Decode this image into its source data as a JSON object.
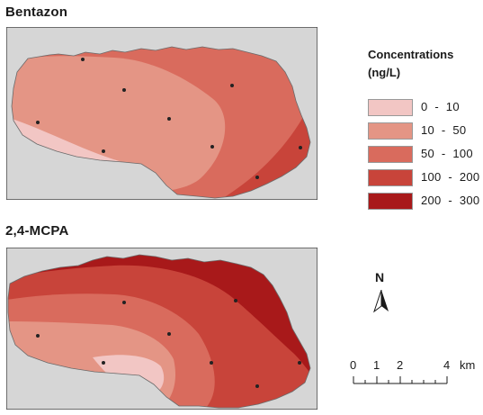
{
  "panels": [
    {
      "title": "Bentazon",
      "stations": [
        "",
        ""
      ]
    },
    {
      "title": "2,4-MCPA",
      "stations": [
        "",
        ""
      ]
    }
  ],
  "legend": {
    "title_line1": "Concentrations",
    "title_line2": "(ng/L)",
    "classes": [
      {
        "label": "0  -  10",
        "color": "#f2c6c4"
      },
      {
        "label": "10  -  50",
        "color": "#e49585"
      },
      {
        "label": "50  -  100",
        "color": "#d96b5d"
      },
      {
        "label": "100  -  200",
        "color": "#c8443a"
      },
      {
        "label": "200  -  300",
        "color": "#a8191a"
      }
    ]
  },
  "north_arrow": {
    "letter": "N",
    "icon": "north-arrow-icon"
  },
  "scale_bar": {
    "ticks": [
      "0",
      "1",
      "2",
      "4"
    ],
    "unit": "km"
  },
  "colors": {
    "background": "#d6d6d6",
    "border": "#4a4a4a",
    "station": "#222222"
  }
}
